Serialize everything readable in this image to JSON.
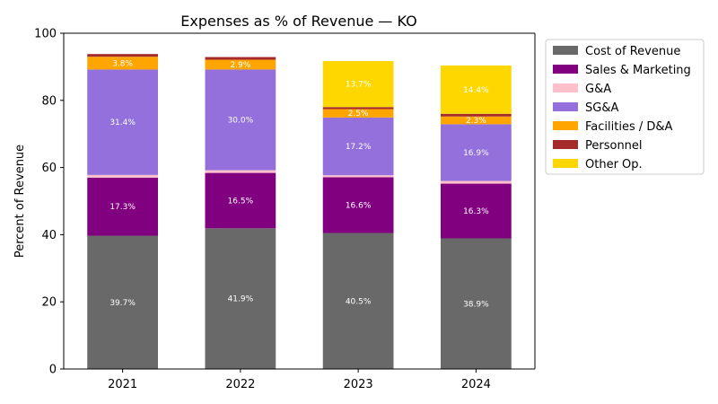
{
  "chart_data": {
    "type": "bar",
    "stacked": true,
    "title": "Expenses as % of Revenue — KO",
    "xlabel": "",
    "ylabel": "Percent of Revenue",
    "ylim": [
      0,
      100
    ],
    "yticks": [
      0,
      20,
      40,
      60,
      80,
      100
    ],
    "categories": [
      "2021",
      "2022",
      "2023",
      "2024"
    ],
    "legend_position": "outside-right-top",
    "series": [
      {
        "name": "Cost of Revenue",
        "color": "#696969",
        "values": [
          39.7,
          41.9,
          40.5,
          38.9
        ],
        "labels": [
          "39.7%",
          "41.9%",
          "40.5%",
          "38.9%"
        ]
      },
      {
        "name": "Sales & Marketing",
        "color": "#800080",
        "values": [
          17.3,
          16.5,
          16.6,
          16.3
        ],
        "labels": [
          "17.3%",
          "16.5%",
          "16.6%",
          "16.3%"
        ]
      },
      {
        "name": "G&A",
        "color": "#ffc0cb",
        "values": [
          0.8,
          0.8,
          0.6,
          0.8
        ],
        "labels": [
          "",
          "",
          "",
          ""
        ]
      },
      {
        "name": "SG&A",
        "color": "#9370db",
        "values": [
          31.4,
          30.0,
          17.2,
          16.9
        ],
        "labels": [
          "31.4%",
          "30.0%",
          "17.2%",
          "16.9%"
        ]
      },
      {
        "name": "Facilities / D&A",
        "color": "#ffa500",
        "values": [
          3.8,
          2.9,
          2.5,
          2.3
        ],
        "labels": [
          "3.8%",
          "2.9%",
          "2.5%",
          "2.3%"
        ]
      },
      {
        "name": "Personnel",
        "color": "#a52a2a",
        "values": [
          0.8,
          0.8,
          0.6,
          0.8
        ],
        "labels": [
          "",
          "",
          "",
          ""
        ]
      },
      {
        "name": "Other Op.",
        "color": "#ffd700",
        "values": [
          0.0,
          0.0,
          13.7,
          14.4
        ],
        "labels": [
          "",
          "",
          "13.7%",
          "14.4%"
        ]
      }
    ]
  }
}
